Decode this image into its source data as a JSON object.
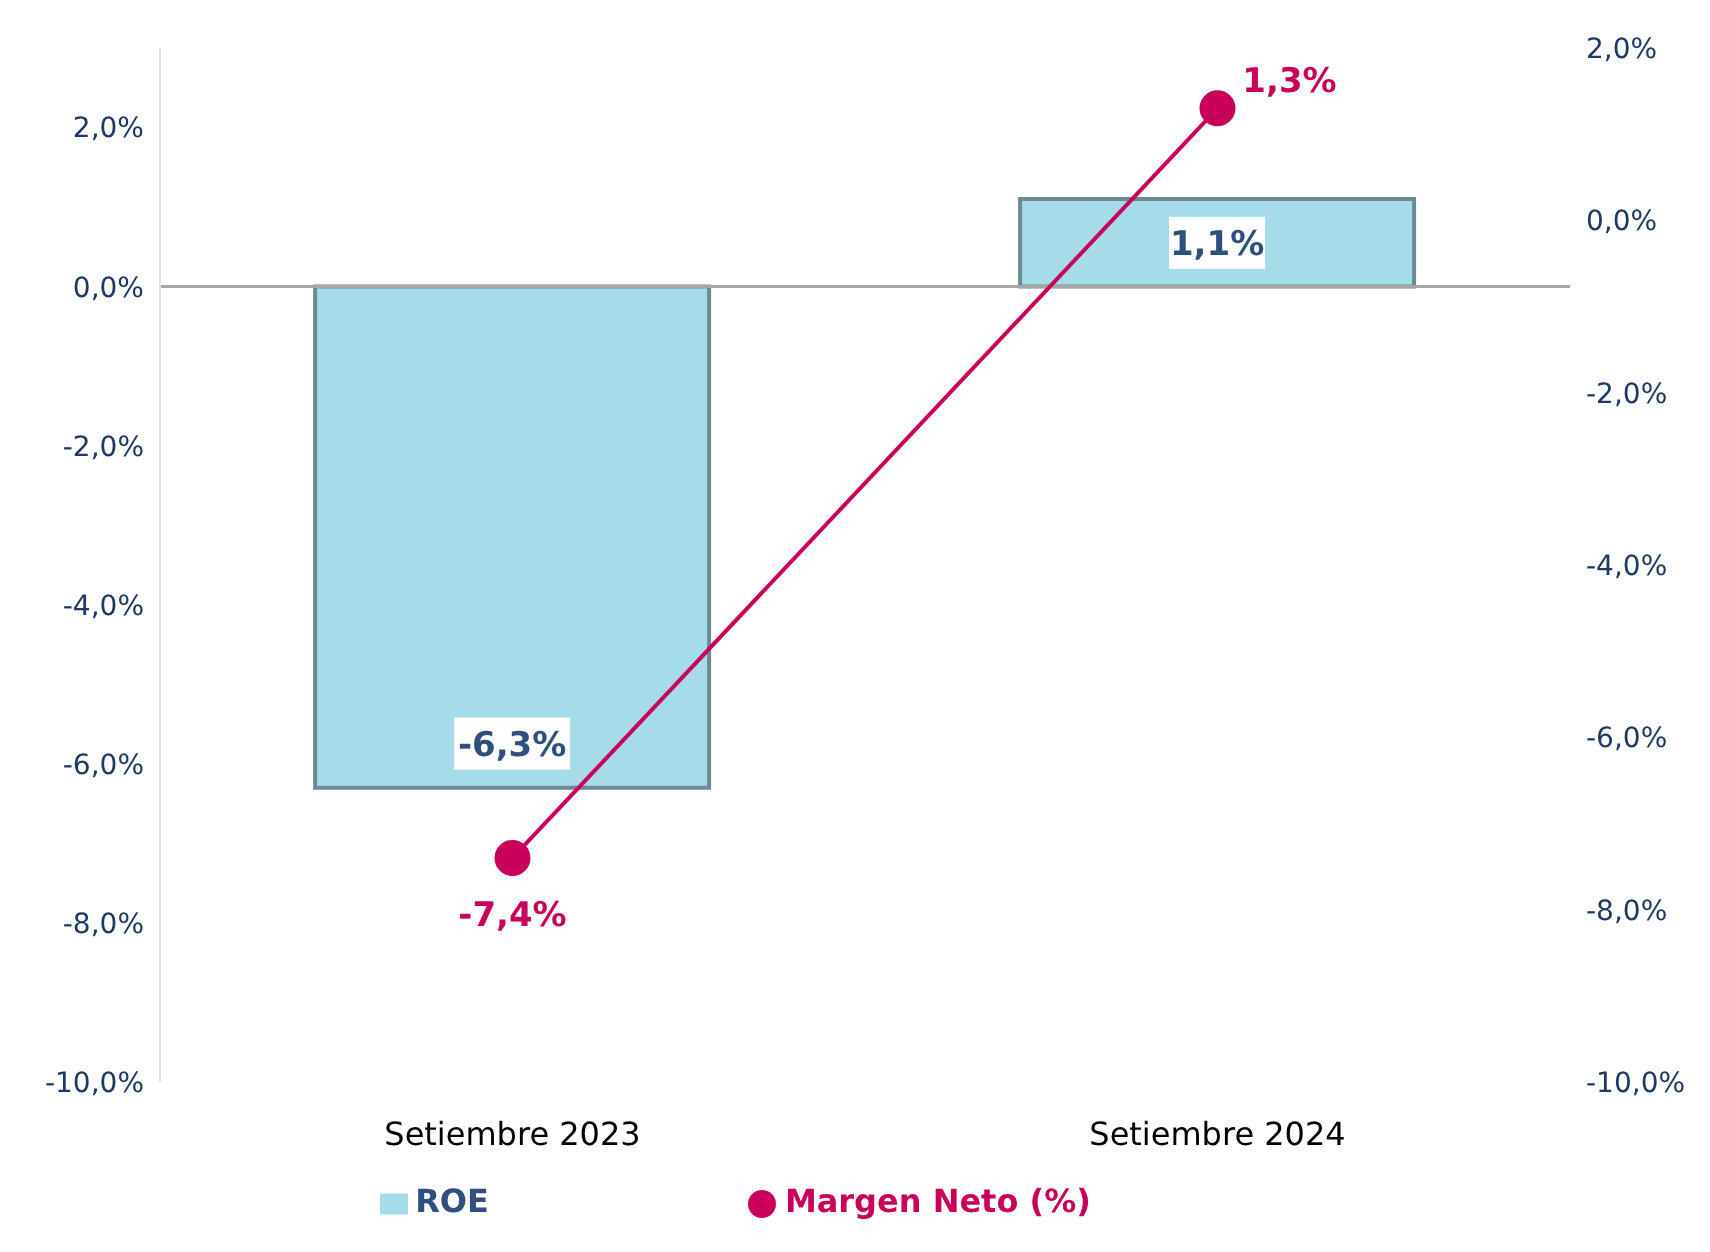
{
  "chart_data": {
    "type": "bar",
    "categories": [
      "Setiembre 2023",
      "Setiembre 2024"
    ],
    "series": [
      {
        "name": "ROE",
        "color": "#a6dcea",
        "values": [
          -6.3,
          1.1
        ],
        "value_labels": [
          "-6,3%",
          "1,1%"
        ]
      },
      {
        "name": "Margen Neto (%)",
        "type": "line",
        "axis": "y2",
        "color": "#c8005a",
        "values": [
          -7.4,
          1.3
        ],
        "value_labels": [
          "-7,4%",
          "1,3%"
        ],
        "marker": "circle"
      }
    ],
    "ylim": [
      -10,
      3
    ],
    "yticks": [
      {
        "value": -10,
        "label": "-10,0%"
      },
      {
        "value": -8,
        "label": "-8,0%"
      },
      {
        "value": -6,
        "label": "-6,0%"
      },
      {
        "value": -4,
        "label": "-4,0%"
      },
      {
        "value": -2,
        "label": "-2,0%"
      },
      {
        "value": 0,
        "label": "0,0%"
      },
      {
        "value": 2,
        "label": "2,0%"
      }
    ],
    "y2lim": [
      -10,
      2
    ],
    "y2ticks": [
      {
        "value": -10,
        "label": "-10,0%"
      },
      {
        "value": -8,
        "label": "-8,0%"
      },
      {
        "value": -6,
        "label": "-6,0%"
      },
      {
        "value": -4,
        "label": "-4,0%"
      },
      {
        "value": -2,
        "label": "-2,0%"
      },
      {
        "value": 0,
        "label": "0,0%"
      },
      {
        "value": 2,
        "label": "2,0%"
      }
    ],
    "ref_lines": [
      {
        "axis": "y",
        "value": 0,
        "color": "#a6a6a6"
      }
    ],
    "grid": false,
    "legend": "bottom"
  }
}
